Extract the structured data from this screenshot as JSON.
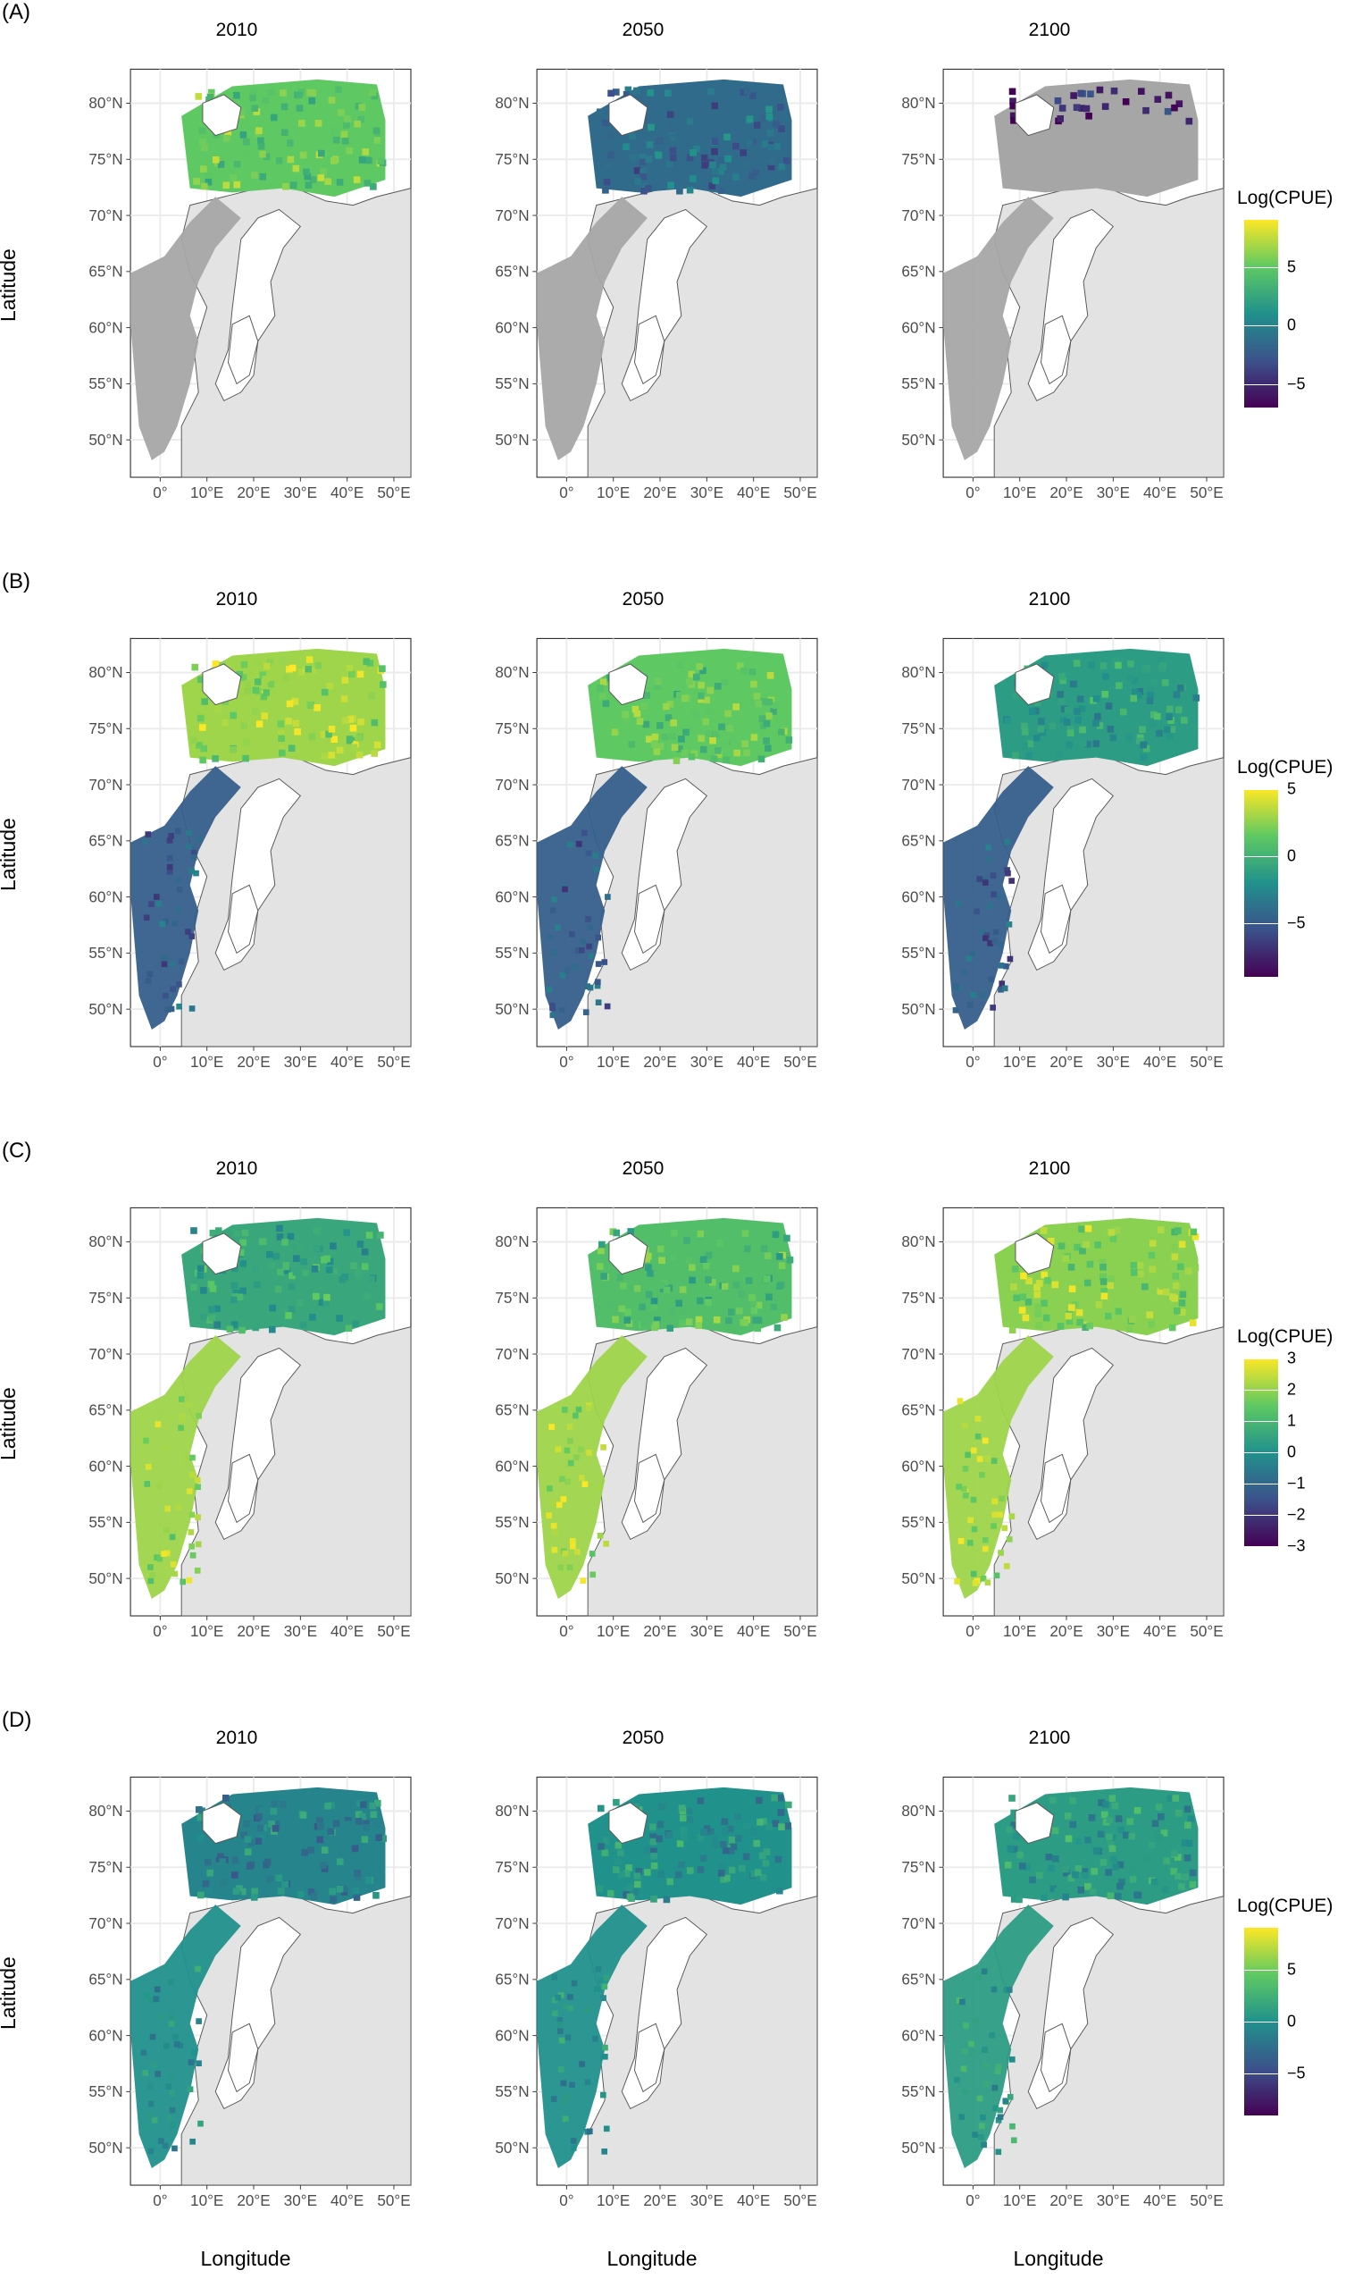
{
  "figure": {
    "y_axis_label": "Latitude",
    "x_axis_label": "Longitude",
    "lat_ticks": [
      "80°N",
      "75°N",
      "70°N",
      "65°N",
      "60°N",
      "55°N",
      "50°N"
    ],
    "lon_ticks": [
      "0°",
      "10°E",
      "20°E",
      "30°E",
      "40°E",
      "50°E"
    ],
    "years": [
      "2010",
      "2050",
      "2100"
    ]
  },
  "rows": [
    {
      "label": "(A)",
      "legend_title": "Log(CPUE)",
      "legend_ticks": [
        "5",
        "0",
        "−5"
      ],
      "legend_tick_values": [
        5,
        0,
        -5
      ],
      "legend_range": [
        -7,
        9
      ],
      "panels": [
        {
          "year": "2010",
          "north_level": 0.75,
          "south_level": null,
          "north_shown": true
        },
        {
          "year": "2050",
          "north_level": 0.35,
          "south_level": null,
          "north_shown": true
        },
        {
          "year": "2100",
          "north_level": 0.1,
          "south_level": null,
          "north_shown": false
        }
      ]
    },
    {
      "label": "(B)",
      "legend_title": "Log(CPUE)",
      "legend_ticks": [
        "5",
        "0",
        "−5"
      ],
      "legend_tick_values": [
        5,
        0,
        -5
      ],
      "legend_range": [
        -9,
        5
      ],
      "panels": [
        {
          "year": "2010",
          "north_level": 0.85,
          "south_level": 0.3,
          "north_shown": true
        },
        {
          "year": "2050",
          "north_level": 0.75,
          "south_level": 0.3,
          "north_shown": true
        },
        {
          "year": "2100",
          "north_level": 0.55,
          "south_level": 0.3,
          "north_shown": true
        }
      ]
    },
    {
      "label": "(C)",
      "legend_title": "Log(CPUE)",
      "legend_ticks": [
        "3",
        "2",
        "1",
        "0",
        "−1",
        "−2",
        "−3"
      ],
      "legend_tick_values": [
        3,
        2,
        1,
        0,
        -1,
        -2,
        -3
      ],
      "legend_range": [
        -3,
        3
      ],
      "panels": [
        {
          "year": "2010",
          "north_level": 0.6,
          "south_level": 0.85,
          "north_shown": true
        },
        {
          "year": "2050",
          "north_level": 0.7,
          "south_level": 0.85,
          "north_shown": true
        },
        {
          "year": "2100",
          "north_level": 0.82,
          "south_level": 0.85,
          "north_shown": true
        }
      ]
    },
    {
      "label": "(D)",
      "legend_title": "Log(CPUE)",
      "legend_ticks": [
        "5",
        "0",
        "−5"
      ],
      "legend_tick_values": [
        5,
        0,
        -5
      ],
      "legend_range": [
        -9,
        9
      ],
      "panels": [
        {
          "year": "2010",
          "north_level": 0.45,
          "south_level": 0.5,
          "north_shown": true
        },
        {
          "year": "2050",
          "north_level": 0.5,
          "south_level": 0.5,
          "north_shown": true
        },
        {
          "year": "2100",
          "north_level": 0.55,
          "south_level": 0.55,
          "north_shown": true
        }
      ]
    }
  ],
  "colors": {
    "land": "#e3e3e3",
    "no_data": "#a6a6a6",
    "coast_line": "#555555",
    "grid_line": "#ebebeb"
  }
}
